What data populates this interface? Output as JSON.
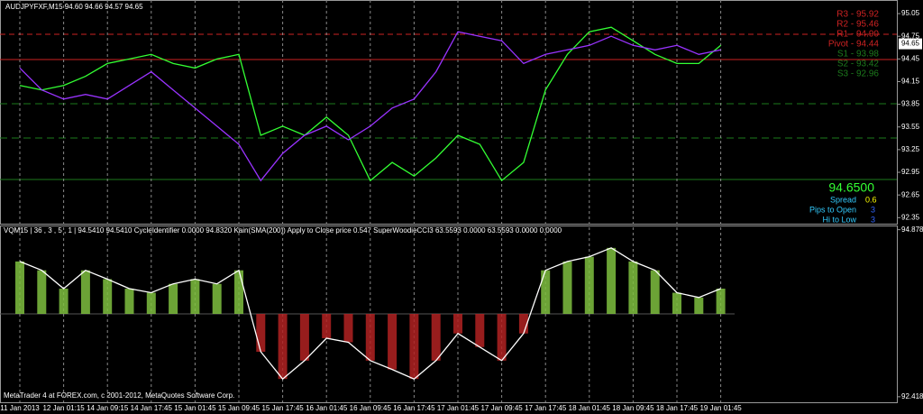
{
  "chart_data": [
    {
      "type": "line",
      "title": "AUDJPYFXF,M15  94.60 94.66 94.57 94.65",
      "categories": [
        "11 Jan 2013",
        null,
        "12 Jan 01:15",
        null,
        "14 Jan 09:15",
        null,
        "14 Jan 17:45",
        null,
        "15 Jan 01:45",
        null,
        "15 Jan 09:45",
        null,
        "15 Jan 17:45",
        null,
        "16 Jan 01:45",
        null,
        "16 Jan 09:45",
        null,
        "16 Jan 17:45",
        null,
        "17 Jan 01:45",
        null,
        "17 Jan 09:45",
        null,
        "17 Jan 17:45",
        null,
        "18 Jan 01:45",
        null,
        "18 Jan 09:45",
        null,
        "18 Jan 17:45",
        null,
        "19 Jan 01:45"
      ],
      "series": [
        {
          "color": "#33ff33",
          "values": [
            94.1,
            94.04,
            94.1,
            94.22,
            94.39,
            94.45,
            94.51,
            94.39,
            94.33,
            94.45,
            94.51,
            93.44,
            93.56,
            93.44,
            93.68,
            93.44,
            92.84,
            93.08,
            92.9,
            93.14,
            93.44,
            93.32,
            92.84,
            93.08,
            94.04,
            94.51,
            94.81,
            94.87,
            94.69,
            94.51,
            94.39,
            94.39,
            94.63
          ]
        },
        {
          "color": "#9933ff",
          "values": [
            94.33,
            94.04,
            93.92,
            93.98,
            93.92,
            94.1,
            94.28,
            94.04,
            93.8,
            93.56,
            93.32,
            92.84,
            93.2,
            93.44,
            93.56,
            93.38,
            93.56,
            93.8,
            93.92,
            94.28,
            94.81,
            94.75,
            94.69,
            94.39,
            94.51,
            94.57,
            94.63,
            94.75,
            94.63,
            94.57,
            94.63,
            94.51,
            94.57
          ]
        }
      ],
      "ylim": [
        92.27,
        95.23
      ],
      "yticks": [
        95.05,
        94.75,
        94.45,
        94.15,
        93.85,
        93.55,
        93.25,
        92.95,
        92.65,
        92.35
      ],
      "last_price": 94.65,
      "pivots": [
        "R3 - 95.92",
        "R2 - 95.46",
        "R1 - 94.90",
        "Pivot - 94.44",
        "S1 - 93.98",
        "S2 - 93.42",
        "S3 - 92.96"
      ],
      "info": {
        "price": "94.6500",
        "spread_label": "Spread",
        "spread": "0.6",
        "pips_label": "Pips to Open",
        "pips": "3",
        "range_label": "Hi to Low",
        "range": "3"
      }
    },
    {
      "type": "bar",
      "title": "VQM15 | 36 , 3 , 5 , 1 | 94.5410 94.5410 CycleIdentifier 0.0000 94.8320 Kain(SMA(200)) Apply to Close price 0.547 SuperWoodieCCI3 63.5593 0.0000 63.5593 0.0000 0.0000",
      "values": [
        94.41,
        94.28,
        94.01,
        94.28,
        94.15,
        94.01,
        93.95,
        94.08,
        94.15,
        94.08,
        94.28,
        93.08,
        92.68,
        92.95,
        93.28,
        93.22,
        92.95,
        92.82,
        92.68,
        92.95,
        93.35,
        93.15,
        92.95,
        93.35,
        94.28,
        94.41,
        94.48,
        94.61,
        94.41,
        94.28,
        93.95,
        93.88,
        94.01
      ],
      "color_up": "#7fbf3f",
      "color_down": "#b22222",
      "line_color": "#ffffff",
      "ylim": [
        92.35,
        94.94
      ],
      "yticks": [
        94.8781,
        92.4181
      ]
    }
  ],
  "footer": "MetaTrader 4 at FOREX.com, c 2001-2012, MetaQuotes Software Corp."
}
